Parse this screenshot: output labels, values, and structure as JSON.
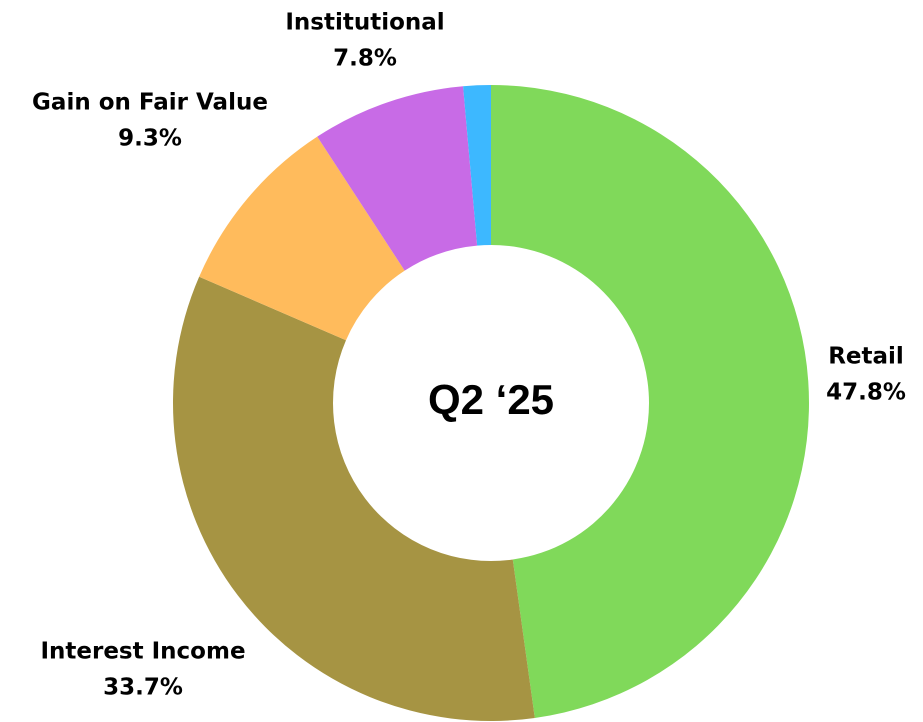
{
  "chart_data": {
    "type": "donut",
    "center_label": "Q2 ‘25",
    "categories": [
      "Retail",
      "Interest Income",
      "Gain on Fair Value",
      "Institutional",
      null
    ],
    "values": [
      47.8,
      33.7,
      9.3,
      7.8,
      1.4
    ],
    "value_labels": [
      "47.8%",
      "33.7%",
      "9.3%",
      "7.8%",
      null
    ],
    "colors": [
      "#80d95a",
      "#a69443",
      "#ffbb5c",
      "#c86be6",
      "#3db8ff"
    ]
  }
}
